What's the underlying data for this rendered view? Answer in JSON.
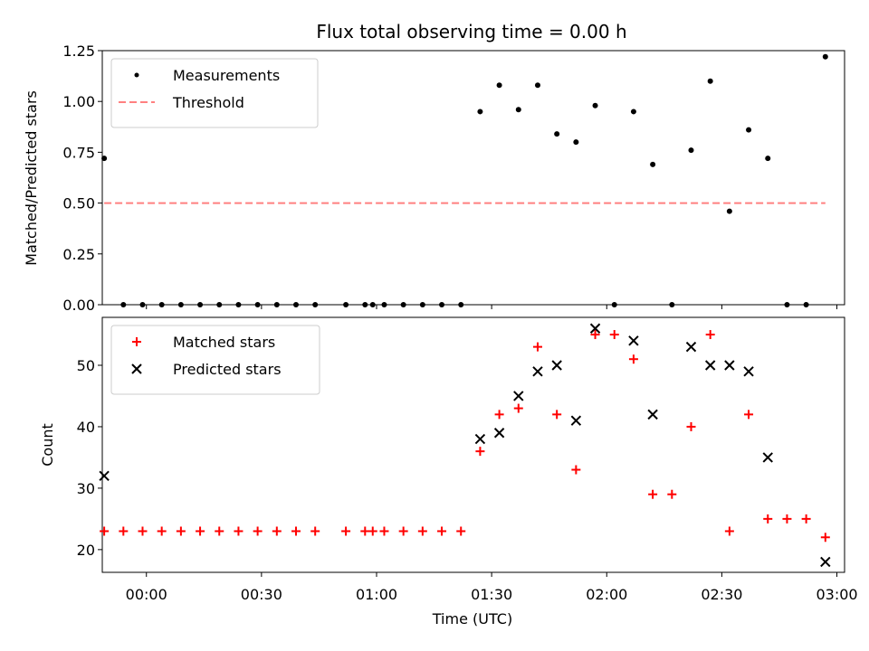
{
  "chart_data": [
    {
      "type": "scatter",
      "title": "Flux total observing time = 0.00 h",
      "ylabel": "Matched/Predicted stars",
      "xlabel": "",
      "ylim": [
        0,
        1.25
      ],
      "yticks": [
        "0.00",
        "0.25",
        "0.50",
        "0.75",
        "1.00",
        "1.25"
      ],
      "ytick_values": [
        0,
        0.25,
        0.5,
        0.75,
        1.0,
        1.25
      ],
      "xticks": [
        "00:00",
        "00:30",
        "01:00",
        "01:30",
        "02:00",
        "02:30",
        "03:00"
      ],
      "xtick_values": [
        0,
        30,
        60,
        90,
        120,
        150,
        180
      ],
      "xlim_minutes": [
        -11.5,
        182
      ],
      "legend_position": "top-left",
      "grid": false,
      "series": [
        {
          "name": "Measurements",
          "color": "#000000",
          "marker": "dot",
          "points": [
            [
              "23:49",
              0.72
            ],
            [
              "23:54",
              0.0
            ],
            [
              "23:59",
              0.0
            ],
            [
              "00:04",
              0.0
            ],
            [
              "00:09",
              0.0
            ],
            [
              "00:14",
              0.0
            ],
            [
              "00:19",
              0.0
            ],
            [
              "00:24",
              0.0
            ],
            [
              "00:29",
              0.0
            ],
            [
              "00:34",
              0.0
            ],
            [
              "00:39",
              0.0
            ],
            [
              "00:44",
              0.0
            ],
            [
              "00:52",
              0.0
            ],
            [
              "00:57",
              0.0
            ],
            [
              "00:59",
              0.0
            ],
            [
              "01:02",
              0.0
            ],
            [
              "01:07",
              0.0
            ],
            [
              "01:12",
              0.0
            ],
            [
              "01:17",
              0.0
            ],
            [
              "01:22",
              0.0
            ],
            [
              "01:27",
              0.95
            ],
            [
              "01:32",
              1.08
            ],
            [
              "01:37",
              0.96
            ],
            [
              "01:42",
              1.08
            ],
            [
              "01:47",
              0.84
            ],
            [
              "01:52",
              0.8
            ],
            [
              "01:57",
              0.98
            ],
            [
              "02:02",
              0.0
            ],
            [
              "02:07",
              0.95
            ],
            [
              "02:12",
              0.69
            ],
            [
              "02:17",
              0.0
            ],
            [
              "02:22",
              0.76
            ],
            [
              "02:27",
              1.1
            ],
            [
              "02:32",
              0.46
            ],
            [
              "02:37",
              0.86
            ],
            [
              "02:42",
              0.72
            ],
            [
              "02:47",
              0.0
            ],
            [
              "02:52",
              0.0
            ],
            [
              "02:57",
              1.22
            ]
          ]
        },
        {
          "name": "Threshold",
          "color": "#ff8080",
          "style": "dashed",
          "y": 0.5,
          "x_range": [
            "23:49",
            "02:57"
          ]
        }
      ]
    },
    {
      "type": "scatter",
      "title": "",
      "ylabel": "Count",
      "xlabel": "Time (UTC)",
      "ylim": [
        16.3,
        57.8
      ],
      "yticks": [
        "20",
        "30",
        "40",
        "50"
      ],
      "ytick_values": [
        20,
        30,
        40,
        50
      ],
      "xticks": [
        "00:00",
        "00:30",
        "01:00",
        "01:30",
        "02:00",
        "02:30",
        "03:00"
      ],
      "xtick_values": [
        0,
        30,
        60,
        90,
        120,
        150,
        180
      ],
      "xlim_minutes": [
        -11.5,
        182
      ],
      "legend_position": "top-left",
      "grid": false,
      "series": [
        {
          "name": "Matched stars",
          "color": "#ff0000",
          "marker": "plus",
          "points": [
            [
              "23:49",
              23
            ],
            [
              "23:54",
              23
            ],
            [
              "23:59",
              23
            ],
            [
              "00:04",
              23
            ],
            [
              "00:09",
              23
            ],
            [
              "00:14",
              23
            ],
            [
              "00:19",
              23
            ],
            [
              "00:24",
              23
            ],
            [
              "00:29",
              23
            ],
            [
              "00:34",
              23
            ],
            [
              "00:39",
              23
            ],
            [
              "00:44",
              23
            ],
            [
              "00:52",
              23
            ],
            [
              "00:57",
              23
            ],
            [
              "00:59",
              23
            ],
            [
              "01:02",
              23
            ],
            [
              "01:07",
              23
            ],
            [
              "01:12",
              23
            ],
            [
              "01:17",
              23
            ],
            [
              "01:22",
              23
            ],
            [
              "01:27",
              36
            ],
            [
              "01:32",
              42
            ],
            [
              "01:37",
              43
            ],
            [
              "01:42",
              53
            ],
            [
              "01:47",
              42
            ],
            [
              "01:52",
              33
            ],
            [
              "01:57",
              55
            ],
            [
              "02:02",
              55
            ],
            [
              "02:07",
              51
            ],
            [
              "02:12",
              29
            ],
            [
              "02:17",
              29
            ],
            [
              "02:22",
              40
            ],
            [
              "02:27",
              55
            ],
            [
              "02:32",
              23
            ],
            [
              "02:37",
              42
            ],
            [
              "02:42",
              25
            ],
            [
              "02:47",
              25
            ],
            [
              "02:52",
              25
            ],
            [
              "02:57",
              22
            ]
          ]
        },
        {
          "name": "Predicted stars",
          "color": "#000000",
          "marker": "x",
          "points": [
            [
              "23:49",
              32
            ],
            [
              "01:27",
              38
            ],
            [
              "01:32",
              39
            ],
            [
              "01:37",
              45
            ],
            [
              "01:42",
              49
            ],
            [
              "01:47",
              50
            ],
            [
              "01:52",
              41
            ],
            [
              "01:57",
              56
            ],
            [
              "02:07",
              54
            ],
            [
              "02:12",
              42
            ],
            [
              "02:22",
              53
            ],
            [
              "02:27",
              50
            ],
            [
              "02:32",
              50
            ],
            [
              "02:37",
              49
            ],
            [
              "02:42",
              35
            ],
            [
              "02:57",
              18
            ]
          ]
        }
      ]
    }
  ]
}
